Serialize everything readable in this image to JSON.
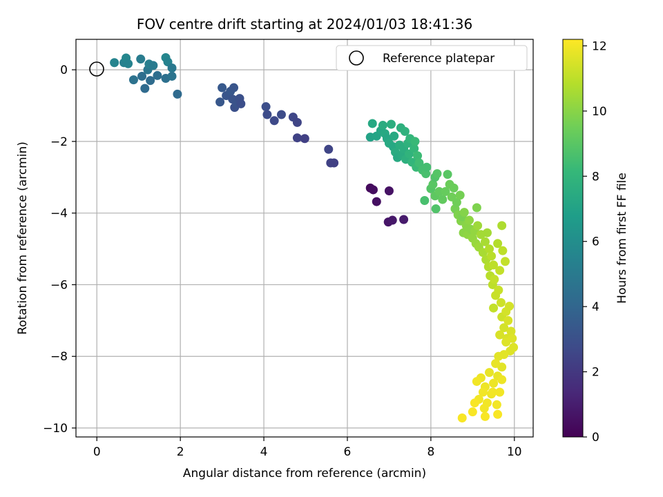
{
  "chart_data": {
    "type": "scatter",
    "title": "FOV centre drift starting at 2024/01/03 18:41:36",
    "xlabel": "Angular distance from reference (arcmin)",
    "ylabel": "Rotation from reference (arcmin)",
    "xlim": [
      -0.5,
      10.45
    ],
    "ylim": [
      -10.25,
      0.85
    ],
    "xticks": [
      0,
      2,
      4,
      6,
      8,
      10
    ],
    "yticks": [
      0,
      -2,
      -4,
      -6,
      -8,
      -10
    ],
    "xtick_labels": [
      "0",
      "2",
      "4",
      "6",
      "8",
      "10"
    ],
    "ytick_labels": [
      "0",
      "−2",
      "−4",
      "−6",
      "−8",
      "−10"
    ],
    "grid": true,
    "legend": {
      "placement": "top-right",
      "entries": [
        "Reference platepar"
      ]
    },
    "colorbar": {
      "label": "Hours from first FF file",
      "colormap": "viridis",
      "range": [
        0,
        12.2
      ],
      "ticks": [
        0,
        2,
        4,
        6,
        8,
        10,
        12
      ],
      "tick_labels": [
        "0",
        "2",
        "4",
        "6",
        "8",
        "10",
        "12"
      ]
    },
    "reference_point": {
      "x": 0,
      "y": 0,
      "label": "Reference platepar"
    },
    "series": [
      {
        "points": [
          [
            6.55,
            -3.3,
            0.3
          ],
          [
            6.62,
            -3.35,
            0.4
          ],
          [
            6.7,
            -3.68,
            0.5
          ],
          [
            7.0,
            -3.38,
            0.6
          ],
          [
            6.98,
            -4.25,
            0.7
          ],
          [
            7.08,
            -4.2,
            0.8
          ],
          [
            7.35,
            -4.18,
            0.9
          ],
          [
            5.55,
            -2.22,
            2.5
          ],
          [
            5.6,
            -2.6,
            2.4
          ],
          [
            5.68,
            -2.6,
            2.3
          ],
          [
            4.05,
            -1.03,
            2.9
          ],
          [
            4.08,
            -1.25,
            2.8
          ],
          [
            4.25,
            -1.42,
            2.7
          ],
          [
            4.42,
            -1.25,
            2.8
          ],
          [
            4.7,
            -1.32,
            2.6
          ],
          [
            4.8,
            -1.47,
            2.5
          ],
          [
            4.8,
            -1.9,
            2.4
          ],
          [
            4.98,
            -1.92,
            2.3
          ],
          [
            2.95,
            -0.9,
            3.3
          ],
          [
            3.0,
            -0.5,
            3.4
          ],
          [
            3.1,
            -0.72,
            3.2
          ],
          [
            3.2,
            -0.6,
            3.3
          ],
          [
            3.25,
            -0.82,
            3.1
          ],
          [
            3.28,
            -0.5,
            3.2
          ],
          [
            3.3,
            -1.05,
            3.0
          ],
          [
            3.35,
            -0.95,
            3.1
          ],
          [
            3.42,
            -0.8,
            3.0
          ],
          [
            3.45,
            -0.95,
            2.9
          ],
          [
            0.42,
            0.2,
            5.5
          ],
          [
            0.65,
            0.2,
            5.3
          ],
          [
            0.7,
            0.33,
            5.6
          ],
          [
            0.75,
            0.17,
            5.4
          ],
          [
            0.88,
            -0.28,
            4.6
          ],
          [
            1.05,
            0.3,
            5.1
          ],
          [
            1.08,
            -0.18,
            4.4
          ],
          [
            1.15,
            -0.52,
            4.2
          ],
          [
            1.22,
            0.0,
            4.8
          ],
          [
            1.25,
            0.16,
            5.2
          ],
          [
            1.28,
            -0.3,
            4.3
          ],
          [
            1.35,
            0.12,
            5.0
          ],
          [
            1.45,
            -0.16,
            4.4
          ],
          [
            1.65,
            -0.24,
            4.5
          ],
          [
            1.65,
            0.34,
            5.6
          ],
          [
            1.7,
            0.22,
            5.4
          ],
          [
            1.8,
            0.05,
            4.9
          ],
          [
            1.8,
            -0.18,
            4.7
          ],
          [
            1.93,
            -0.68,
            4.2
          ],
          [
            6.55,
            -1.88,
            7.0
          ],
          [
            6.6,
            -1.5,
            7.3
          ],
          [
            6.7,
            -1.85,
            7.1
          ],
          [
            6.8,
            -1.7,
            7.2
          ],
          [
            6.85,
            -1.55,
            7.5
          ],
          [
            6.9,
            -1.78,
            7.3
          ],
          [
            6.95,
            -1.92,
            7.2
          ],
          [
            7.0,
            -2.05,
            7.4
          ],
          [
            7.05,
            -1.52,
            7.6
          ],
          [
            7.1,
            -2.15,
            7.3
          ],
          [
            7.12,
            -1.85,
            7.4
          ],
          [
            7.15,
            -2.3,
            7.5
          ],
          [
            7.2,
            -2.45,
            7.4
          ],
          [
            7.25,
            -2.1,
            7.6
          ],
          [
            7.28,
            -1.62,
            7.7
          ],
          [
            7.3,
            -2.38,
            7.5
          ],
          [
            7.35,
            -2.2,
            7.6
          ],
          [
            7.38,
            -1.72,
            7.8
          ],
          [
            7.4,
            -2.5,
            7.7
          ],
          [
            7.45,
            -2.05,
            7.8
          ],
          [
            7.48,
            -2.35,
            7.9
          ],
          [
            7.5,
            -1.92,
            8.0
          ],
          [
            7.55,
            -2.58,
            8.0
          ],
          [
            7.6,
            -2.2,
            8.1
          ],
          [
            7.62,
            -2.0,
            8.2
          ],
          [
            7.65,
            -2.72,
            8.2
          ],
          [
            7.68,
            -2.4,
            8.3
          ],
          [
            7.72,
            -2.6,
            8.4
          ],
          [
            7.8,
            -2.8,
            8.5
          ],
          [
            7.85,
            -3.65,
            8.6
          ],
          [
            7.88,
            -2.9,
            8.6
          ],
          [
            7.9,
            -2.72,
            8.5
          ],
          [
            8.0,
            -3.32,
            8.9
          ],
          [
            8.05,
            -3.2,
            9.0
          ],
          [
            8.1,
            -3.0,
            8.8
          ],
          [
            8.1,
            -3.52,
            9.1
          ],
          [
            8.12,
            -3.88,
            8.8
          ],
          [
            8.15,
            -2.9,
            8.9
          ],
          [
            8.2,
            -3.4,
            9.2
          ],
          [
            8.28,
            -3.62,
            9.2
          ],
          [
            8.35,
            -3.4,
            9.3
          ],
          [
            8.4,
            -2.92,
            9.0
          ],
          [
            8.45,
            -3.2,
            9.4
          ],
          [
            8.5,
            -3.55,
            9.5
          ],
          [
            8.55,
            -3.3,
            9.4
          ],
          [
            8.58,
            -3.88,
            9.6
          ],
          [
            8.62,
            -3.7,
            9.5
          ],
          [
            8.65,
            -4.05,
            9.8
          ],
          [
            8.7,
            -3.5,
            9.6
          ],
          [
            8.72,
            -4.22,
            9.9
          ],
          [
            8.75,
            -4.1,
            9.7
          ],
          [
            8.78,
            -4.55,
            10.0
          ],
          [
            8.8,
            -3.98,
            9.9
          ],
          [
            8.85,
            -4.35,
            10.0
          ],
          [
            8.88,
            -4.6,
            10.1
          ],
          [
            8.92,
            -4.2,
            10.1
          ],
          [
            8.95,
            -4.45,
            10.0
          ],
          [
            9.0,
            -4.7,
            10.2
          ],
          [
            9.05,
            -4.5,
            10.2
          ],
          [
            9.08,
            -4.85,
            10.3
          ],
          [
            9.1,
            -3.85,
            9.8
          ],
          [
            9.12,
            -4.35,
            10.4
          ],
          [
            9.15,
            -4.95,
            10.4
          ],
          [
            9.2,
            -4.6,
            10.5
          ],
          [
            9.25,
            -5.1,
            10.6
          ],
          [
            9.3,
            -4.8,
            10.6
          ],
          [
            9.32,
            -5.3,
            10.7
          ],
          [
            9.35,
            -4.55,
            10.5
          ],
          [
            9.38,
            -5.5,
            10.8
          ],
          [
            9.4,
            -5.0,
            10.8
          ],
          [
            9.42,
            -5.75,
            10.9
          ],
          [
            9.45,
            -5.2,
            10.9
          ],
          [
            9.48,
            -6.0,
            11.0
          ],
          [
            9.5,
            -5.45,
            11.0
          ],
          [
            9.5,
            -6.65,
            11.1
          ],
          [
            9.52,
            -5.85,
            11.1
          ],
          [
            9.55,
            -6.3,
            11.2
          ],
          [
            9.6,
            -4.85,
            10.8
          ],
          [
            9.62,
            -6.15,
            11.2
          ],
          [
            9.65,
            -5.6,
            11.1
          ],
          [
            9.68,
            -6.5,
            11.3
          ],
          [
            9.7,
            -4.35,
            10.7
          ],
          [
            9.7,
            -6.9,
            11.3
          ],
          [
            9.72,
            -5.05,
            11.0
          ],
          [
            9.75,
            -7.2,
            11.4
          ],
          [
            9.78,
            -5.35,
            11.1
          ],
          [
            9.8,
            -6.75,
            11.4
          ],
          [
            9.82,
            -7.5,
            11.5
          ],
          [
            9.85,
            -7.0,
            11.5
          ],
          [
            9.88,
            -6.6,
            11.4
          ],
          [
            9.9,
            -7.85,
            11.6
          ],
          [
            9.92,
            -7.3,
            11.5
          ],
          [
            9.95,
            -7.5,
            11.6
          ],
          [
            9.98,
            -7.75,
            11.6
          ],
          [
            9.8,
            -7.6,
            11.6
          ],
          [
            9.75,
            -7.95,
            11.7
          ],
          [
            9.7,
            -8.3,
            11.7
          ],
          [
            9.65,
            -7.4,
            11.5
          ],
          [
            9.6,
            -8.55,
            11.8
          ],
          [
            9.62,
            -8.0,
            11.7
          ],
          [
            9.55,
            -8.2,
            11.8
          ],
          [
            9.5,
            -8.75,
            11.9
          ],
          [
            9.45,
            -9.05,
            11.9
          ],
          [
            9.4,
            -8.45,
            11.8
          ],
          [
            9.35,
            -9.3,
            12.0
          ],
          [
            9.3,
            -8.85,
            11.9
          ],
          [
            9.28,
            -9.45,
            12.0
          ],
          [
            9.25,
            -9.0,
            12.0
          ],
          [
            9.2,
            -8.6,
            11.9
          ],
          [
            9.15,
            -9.2,
            12.0
          ],
          [
            9.1,
            -8.7,
            12.0
          ],
          [
            9.05,
            -9.3,
            12.1
          ],
          [
            9.0,
            -9.55,
            12.1
          ],
          [
            9.3,
            -9.68,
            12.1
          ],
          [
            9.6,
            -9.62,
            12.1
          ],
          [
            8.75,
            -9.72,
            12.1
          ],
          [
            9.58,
            -9.35,
            12.0
          ],
          [
            9.48,
            -9.0,
            12.0
          ],
          [
            9.7,
            -8.65,
            11.9
          ],
          [
            9.65,
            -9.0,
            12.0
          ]
        ]
      }
    ]
  }
}
